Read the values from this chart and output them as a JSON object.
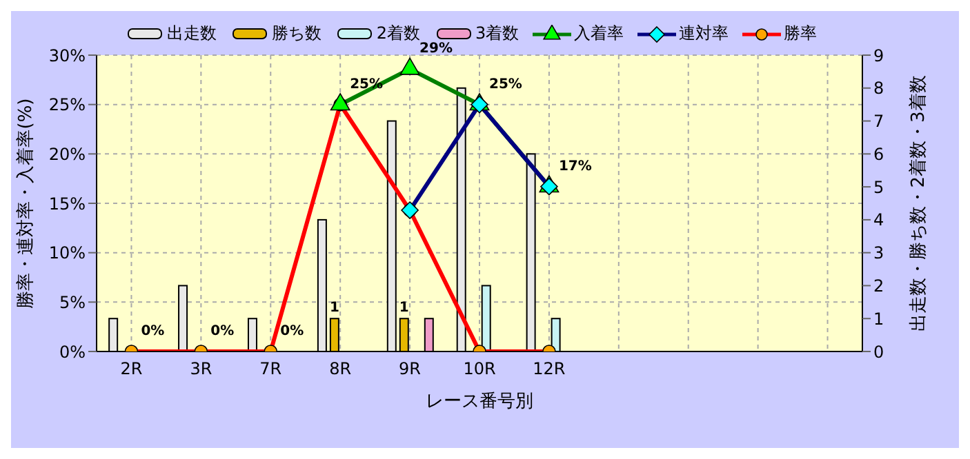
{
  "chart_data": {
    "type": "bar",
    "xlabel": "レース番号別",
    "ylabel": "勝率・連対率・入着率(%)",
    "y2label": "出走数・勝ち数・2着数・3着数",
    "categories": [
      "2R",
      "3R",
      "7R",
      "8R",
      "9R",
      "10R",
      "12R",
      null,
      null,
      null,
      null
    ],
    "series": [
      {
        "name": "出走数",
        "axis": "y2",
        "color": "#e8e8e8",
        "values": [
          1,
          2,
          1,
          4,
          7,
          8,
          6,
          null,
          null,
          null,
          null
        ]
      },
      {
        "name": "勝ち数",
        "axis": "y2",
        "color": "#e6b800",
        "values": [
          0,
          0,
          0,
          1,
          1,
          0,
          0,
          null,
          null,
          null,
          null
        ],
        "value_labels": [
          null,
          null,
          null,
          "1",
          "1",
          null,
          null,
          null,
          null,
          null,
          null
        ]
      },
      {
        "name": "2着数",
        "axis": "y2",
        "color": "#c8f4f4",
        "values": [
          0,
          0,
          0,
          0,
          0,
          2,
          1,
          null,
          null,
          null,
          null
        ]
      },
      {
        "name": "3着数",
        "axis": "y2",
        "color": "#f09cc8",
        "values": [
          0,
          0,
          0,
          0,
          1,
          0,
          0,
          null,
          null,
          null,
          null
        ]
      },
      {
        "name": "入着率",
        "type": "line",
        "axis": "y",
        "color": "#008000",
        "marker": "triangle",
        "values": [
          null,
          null,
          null,
          25,
          28.6,
          25,
          16.7,
          null,
          null,
          null,
          null
        ],
        "value_labels": [
          null,
          null,
          null,
          "25%",
          "29%",
          "25%",
          "17%",
          null,
          null,
          null,
          null
        ]
      },
      {
        "name": "連対率",
        "type": "line",
        "axis": "y",
        "color": "#000080",
        "marker": "diamond",
        "values": [
          null,
          null,
          null,
          null,
          14.3,
          25,
          16.7,
          null,
          null,
          null,
          null
        ]
      },
      {
        "name": "勝率",
        "type": "line",
        "axis": "y",
        "color": "#ff0000",
        "marker": "circle",
        "values": [
          0,
          0,
          0,
          25,
          14.3,
          0,
          0,
          null,
          null,
          null,
          null
        ],
        "value_labels": [
          "0%",
          "0%",
          "0%",
          null,
          null,
          null,
          null,
          null,
          null,
          null,
          null
        ]
      }
    ],
    "ylim": [
      0,
      30
    ],
    "yticks": [
      {
        "value": 0,
        "label": "0%"
      },
      {
        "value": 5,
        "label": "5%"
      },
      {
        "value": 10,
        "label": "10%"
      },
      {
        "value": 15,
        "label": "15%"
      },
      {
        "value": 20,
        "label": "20%"
      },
      {
        "value": 25,
        "label": "25%"
      },
      {
        "value": 30,
        "label": "30%"
      }
    ],
    "y2lim": [
      0,
      9
    ],
    "y2ticks": [
      0,
      1,
      2,
      3,
      4,
      5,
      6,
      7,
      8,
      9
    ],
    "grid": true,
    "legend": "top",
    "line_style": "solid"
  }
}
